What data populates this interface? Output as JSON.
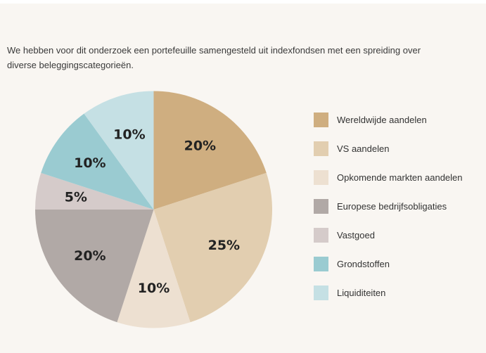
{
  "intro_text": "We hebben voor dit onderzoek een portefeuille samengesteld uit indexfondsen met een spreiding over diverse beleggingscategorieën.",
  "chart_data": {
    "type": "pie",
    "title": "",
    "start": "top",
    "direction": "clockwise",
    "unit": "%",
    "slices": [
      {
        "name": "Wereldwijde aandelen",
        "value": 20,
        "label": "20%",
        "color": "#cfae80"
      },
      {
        "name": "VS aandelen",
        "value": 25,
        "label": "25%",
        "color": "#e2ceb0"
      },
      {
        "name": "Opkomende markten aandelen",
        "value": 10,
        "label": "10%",
        "color": "#ede0d1"
      },
      {
        "name": "Europese bedrijfsobligaties",
        "value": 20,
        "label": "20%",
        "color": "#b1a9a6"
      },
      {
        "name": "Vastgoed",
        "value": 5,
        "label": "5%",
        "color": "#d5cbca"
      },
      {
        "name": "Grondstoffen",
        "value": 10,
        "label": "10%",
        "color": "#9acbd1"
      },
      {
        "name": "Liquiditeiten",
        "value": 10,
        "label": "10%",
        "color": "#c5e0e4"
      }
    ],
    "legend_position": "right"
  }
}
